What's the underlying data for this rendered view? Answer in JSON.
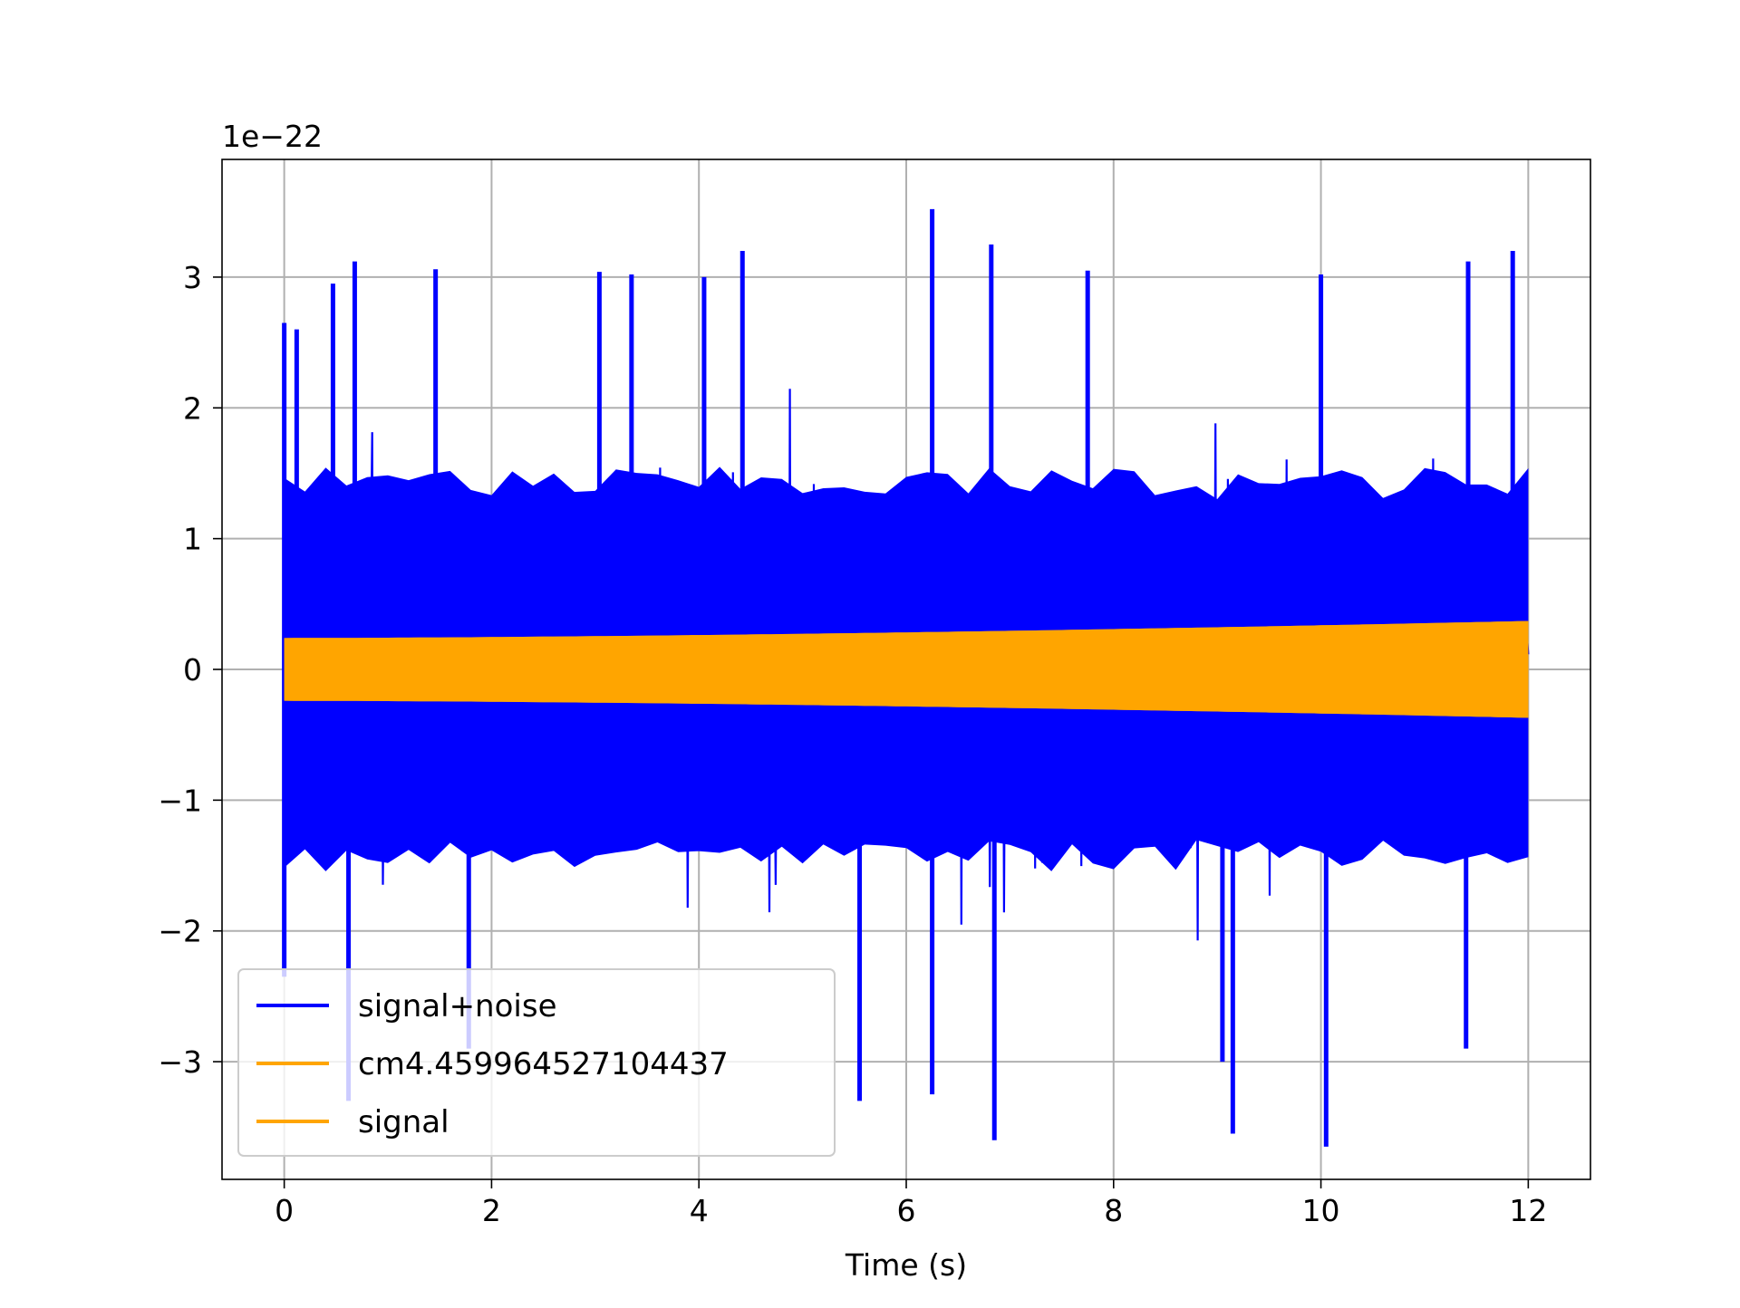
{
  "chart_data": {
    "type": "line",
    "title": "",
    "xlabel": "Time (s)",
    "ylabel": "",
    "y_offset_label": "1e−22",
    "xlim": [
      -0.6,
      12.6
    ],
    "ylim": [
      -3.9,
      3.9
    ],
    "xticks": [
      0,
      2,
      4,
      6,
      8,
      10,
      12
    ],
    "xtick_labels": [
      "0",
      "2",
      "4",
      "6",
      "8",
      "10",
      "12"
    ],
    "yticks": [
      -3,
      -2,
      -1,
      0,
      1,
      2,
      3
    ],
    "ytick_labels": [
      "−3",
      "−2",
      "−1",
      "0",
      "1",
      "2",
      "3"
    ],
    "grid": true,
    "legend_position": "lower-left",
    "series": [
      {
        "name": "signal+noise",
        "color": "#0000ff",
        "x_range": [
          0,
          12
        ],
        "amplitude_range": [
          -3.6,
          3.5
        ],
        "typical_band": [
          -1.6,
          1.6
        ],
        "peaks": [
          {
            "x": 0.0,
            "y": 2.65
          },
          {
            "x": 0.12,
            "y": 2.6
          },
          {
            "x": 0.47,
            "y": 2.95
          },
          {
            "x": 0.68,
            "y": 3.12
          },
          {
            "x": 1.46,
            "y": 3.06
          },
          {
            "x": 3.04,
            "y": 3.04
          },
          {
            "x": 3.35,
            "y": 3.02
          },
          {
            "x": 4.05,
            "y": 3.0
          },
          {
            "x": 4.42,
            "y": 3.2
          },
          {
            "x": 6.25,
            "y": 3.52
          },
          {
            "x": 6.82,
            "y": 3.25
          },
          {
            "x": 7.75,
            "y": 3.05
          },
          {
            "x": 10.0,
            "y": 3.02
          },
          {
            "x": 11.42,
            "y": 3.12
          },
          {
            "x": 11.85,
            "y": 3.2
          }
        ],
        "troughs": [
          {
            "x": 0.0,
            "y": -2.35
          },
          {
            "x": 0.62,
            "y": -3.3
          },
          {
            "x": 1.78,
            "y": -2.9
          },
          {
            "x": 5.55,
            "y": -3.3
          },
          {
            "x": 6.25,
            "y": -3.25
          },
          {
            "x": 6.85,
            "y": -3.6
          },
          {
            "x": 9.15,
            "y": -3.55
          },
          {
            "x": 10.05,
            "y": -3.65
          },
          {
            "x": 9.05,
            "y": -3.0
          },
          {
            "x": 11.4,
            "y": -2.9
          }
        ]
      },
      {
        "name": "cm4.459964527104437",
        "color": "#ffa500",
        "x_range": [
          0,
          12
        ],
        "amplitude_start": 0.24,
        "amplitude_end": 0.37
      },
      {
        "name": "signal",
        "color": "#ffa500",
        "x_range": [
          0,
          12
        ],
        "amplitude_start": 0.24,
        "amplitude_end": 0.37
      }
    ]
  }
}
